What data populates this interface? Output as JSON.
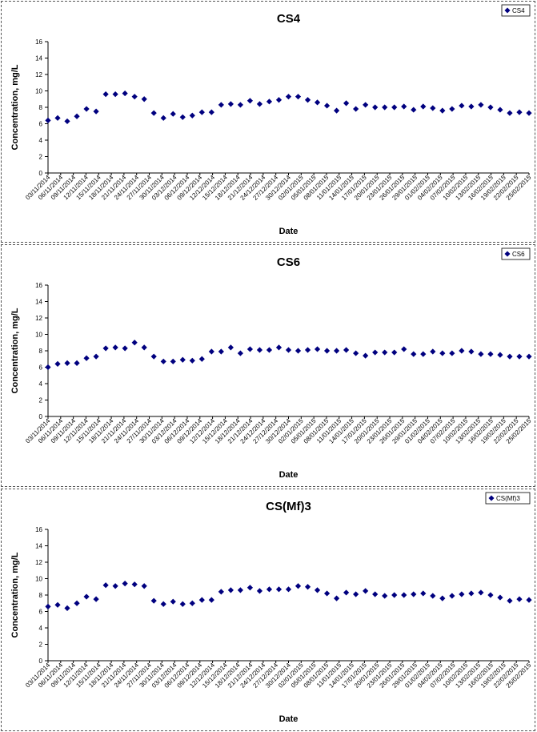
{
  "colors": {
    "marker": "#00007f",
    "axis": "#000000"
  },
  "chart_data": [
    {
      "type": "scatter",
      "title": "CS4",
      "xlabel": "Date",
      "ylabel": "Concentration, mg/L",
      "ylim": [
        0,
        16
      ],
      "yticks": [
        "0",
        "2",
        "4",
        "6",
        "8",
        "10",
        "12",
        "14",
        "16"
      ],
      "legend": "CS4",
      "legend_position": "top-right",
      "grid": false,
      "xticks": [
        "03/11/2014",
        "06/11/2014",
        "09/11/2014",
        "12/11/2014",
        "15/11/2014",
        "18/11/2014",
        "21/11/2014",
        "24/11/2014",
        "27/11/2014",
        "30/11/2014",
        "03/12/2014",
        "06/12/2014",
        "09/12/2014",
        "12/12/2014",
        "15/12/2014",
        "18/12/2014",
        "21/12/2014",
        "24/12/2014",
        "27/12/2014",
        "30/12/2014",
        "02/01/2015",
        "05/01/2015",
        "08/01/2015",
        "11/01/2015",
        "14/01/2015",
        "17/01/2015",
        "20/01/2015",
        "23/01/2015",
        "26/01/2015",
        "29/01/2015",
        "01/02/2015",
        "04/02/2015",
        "07/02/2015",
        "10/02/2015",
        "13/02/2015",
        "16/02/2015",
        "19/02/2015",
        "22/02/2015",
        "25/02/2015"
      ],
      "values": [
        6.4,
        6.7,
        6.3,
        6.9,
        7.8,
        7.5,
        9.6,
        9.6,
        9.7,
        9.3,
        9.0,
        7.3,
        6.7,
        7.2,
        6.8,
        7.0,
        7.4,
        7.4,
        8.3,
        8.4,
        8.3,
        8.8,
        8.4,
        8.7,
        8.9,
        9.3,
        9.3,
        8.9,
        8.6,
        8.2,
        7.6,
        8.5,
        7.8,
        8.3,
        8.0,
        8.0,
        8.0,
        8.1,
        7.7,
        8.1,
        7.9,
        7.6,
        7.8,
        8.2,
        8.1,
        8.3,
        8.0,
        7.7,
        7.3,
        7.4,
        7.3
      ]
    },
    {
      "type": "scatter",
      "title": "CS6",
      "xlabel": "Date",
      "ylabel": "Concentration, mg/L",
      "ylim": [
        0,
        16
      ],
      "yticks": [
        "0",
        "2",
        "4",
        "6",
        "8",
        "10",
        "12",
        "14",
        "16"
      ],
      "legend": "CS6",
      "legend_position": "top-right",
      "grid": false,
      "xticks": [
        "03/11/2014",
        "06/11/2014",
        "09/11/2014",
        "12/11/2014",
        "15/11/2014",
        "18/11/2014",
        "21/11/2014",
        "24/11/2014",
        "27/11/2014",
        "30/11/2014",
        "03/12/2014",
        "06/12/2014",
        "09/12/2014",
        "12/12/2014",
        "15/12/2014",
        "18/12/2014",
        "21/12/2014",
        "24/12/2014",
        "27/12/2014",
        "30/12/2014",
        "02/01/2015",
        "05/01/2015",
        "08/01/2015",
        "11/01/2015",
        "14/01/2015",
        "17/01/2015",
        "20/01/2015",
        "23/01/2015",
        "26/01/2015",
        "29/01/2015",
        "01/02/2015",
        "04/02/2015",
        "07/02/2015",
        "10/02/2015",
        "13/02/2015",
        "16/02/2015",
        "19/02/2015",
        "22/02/2015",
        "25/02/2015"
      ],
      "values": [
        6.0,
        6.4,
        6.5,
        6.5,
        7.1,
        7.3,
        8.3,
        8.4,
        8.3,
        9.0,
        8.4,
        7.3,
        6.7,
        6.7,
        6.9,
        6.8,
        7.0,
        7.9,
        7.9,
        8.4,
        7.7,
        8.2,
        8.1,
        8.1,
        8.4,
        8.1,
        8.0,
        8.1,
        8.2,
        8.0,
        8.0,
        8.1,
        7.7,
        7.4,
        7.8,
        7.8,
        7.8,
        8.2,
        7.6,
        7.6,
        7.9,
        7.7,
        7.7,
        8.0,
        7.9,
        7.6,
        7.6,
        7.5,
        7.3,
        7.3,
        7.3
      ]
    },
    {
      "type": "scatter",
      "title": "CS(Mf)3",
      "xlabel": "Date",
      "ylabel": "Concentration, mg/L",
      "ylim": [
        0,
        16
      ],
      "yticks": [
        "0",
        "2",
        "4",
        "6",
        "8",
        "10",
        "12",
        "14",
        "16"
      ],
      "legend": "CS(Mf)3",
      "legend_position": "top-right",
      "grid": false,
      "xticks": [
        "03/11/2014",
        "06/11/2014",
        "09/11/2014",
        "12/11/2014",
        "15/11/2014",
        "18/11/2014",
        "21/11/2014",
        "24/11/2014",
        "27/11/2014",
        "30/11/2014",
        "03/12/2014",
        "06/12/2014",
        "09/12/2014",
        "12/12/2014",
        "15/12/2014",
        "18/12/2014",
        "21/12/2014",
        "24/12/2014",
        "27/12/2014",
        "30/12/2014",
        "02/01/2015",
        "05/01/2015",
        "08/01/2015",
        "11/01/2015",
        "14/01/2015",
        "17/01/2015",
        "20/01/2015",
        "23/01/2015",
        "26/01/2015",
        "29/01/2015",
        "01/02/2015",
        "04/02/2015",
        "07/02/2015",
        "10/02/2015",
        "13/02/2015",
        "16/02/2015",
        "19/02/2015",
        "22/02/2015",
        "25/02/2015"
      ],
      "values": [
        6.6,
        6.8,
        6.4,
        7.0,
        7.8,
        7.5,
        9.2,
        9.1,
        9.4,
        9.3,
        9.1,
        7.3,
        6.9,
        7.2,
        6.9,
        7.0,
        7.4,
        7.4,
        8.4,
        8.6,
        8.6,
        8.9,
        8.5,
        8.7,
        8.7,
        8.7,
        9.1,
        9.0,
        8.6,
        8.2,
        7.6,
        8.3,
        8.1,
        8.5,
        8.1,
        7.9,
        8.0,
        8.0,
        8.1,
        8.2,
        7.9,
        7.6,
        7.9,
        8.1,
        8.2,
        8.3,
        8.0,
        7.7,
        7.3,
        7.5,
        7.4
      ]
    }
  ]
}
